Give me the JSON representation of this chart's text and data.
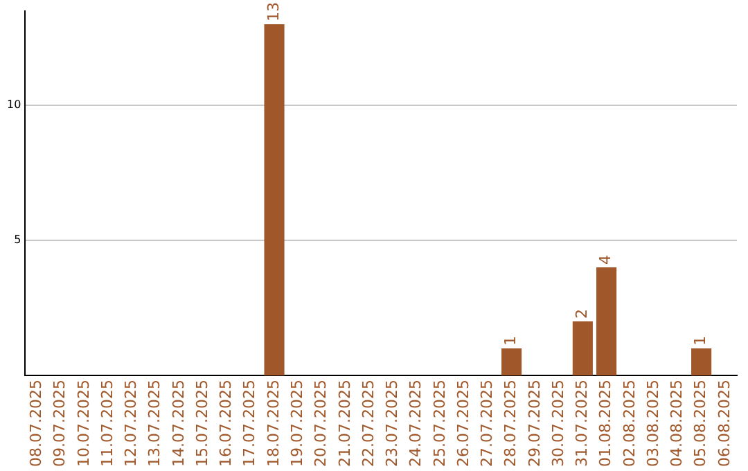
{
  "chart_data": {
    "type": "bar",
    "categories": [
      "08.07.2025",
      "09.07.2025",
      "10.07.2025",
      "11.07.2025",
      "12.07.2025",
      "13.07.2025",
      "14.07.2025",
      "15.07.2025",
      "16.07.2025",
      "17.07.2025",
      "18.07.2025",
      "19.07.2025",
      "20.07.2025",
      "21.07.2025",
      "22.07.2025",
      "23.07.2025",
      "24.07.2025",
      "25.07.2025",
      "26.07.2025",
      "27.07.2025",
      "28.07.2025",
      "29.07.2025",
      "30.07.2025",
      "31.07.2025",
      "01.08.2025",
      "02.08.2025",
      "03.08.2025",
      "04.08.2025",
      "05.08.2025",
      "06.08.2025"
    ],
    "values": [
      0,
      0,
      0,
      0,
      0,
      0,
      0,
      0,
      0,
      0,
      13,
      0,
      0,
      0,
      0,
      0,
      0,
      0,
      0,
      0,
      1,
      0,
      0,
      2,
      4,
      0,
      0,
      0,
      1,
      0
    ],
    "value_labels": [
      null,
      null,
      null,
      null,
      null,
      null,
      null,
      null,
      null,
      null,
      "13",
      null,
      null,
      null,
      null,
      null,
      null,
      null,
      null,
      null,
      "1",
      null,
      null,
      "2",
      "4",
      null,
      null,
      null,
      "1",
      null
    ],
    "color": "#a0572a",
    "ylim": [
      0,
      13.5
    ],
    "yticks": [
      5,
      10
    ],
    "grid": "y",
    "legend": false
  }
}
